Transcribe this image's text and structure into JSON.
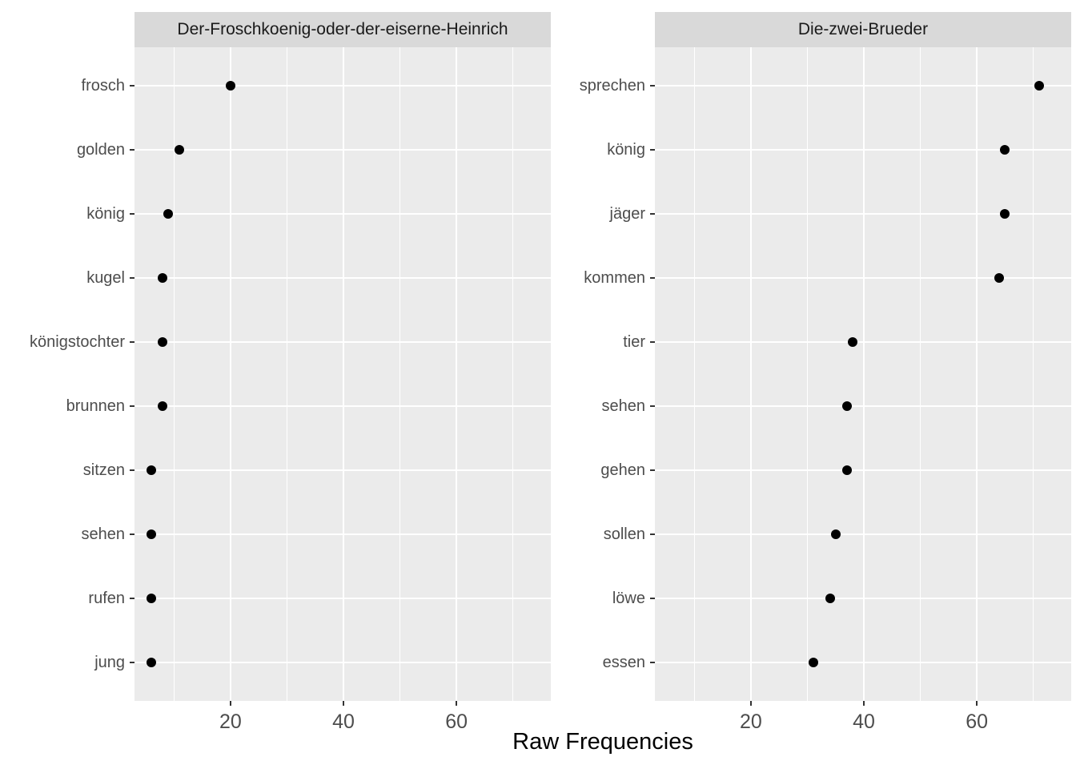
{
  "figure": {
    "xlabel": "Raw Frequencies",
    "x_ticks": [
      20,
      40,
      60
    ],
    "x_minor_ticks": [
      10,
      30,
      50,
      70
    ],
    "x_domain": [
      3,
      76.7
    ],
    "grid": "on",
    "legend": "none",
    "colors": {
      "panel_bg": "#ebebeb",
      "strip_bg": "#d9d9d9",
      "gridline": "#ffffff",
      "dot": "#000000",
      "axis_text": "#4d4d4d",
      "strip_text": "#1a1a1a",
      "tick_mark": "#333333",
      "axis_title": "#000000"
    }
  },
  "chart_data": [
    {
      "type": "scatter",
      "subtype": "horizontal-dot-plot",
      "facet_label": "Der-Froschkoenig-oder-der-eiserne-Heinrich",
      "xlabel": "Raw Frequencies",
      "xlim": [
        3,
        76.7
      ],
      "x_ticks": [
        20,
        40,
        60
      ],
      "categories": [
        "frosch",
        "golden",
        "könig",
        "kugel",
        "königstochter",
        "brunnen",
        "sitzen",
        "sehen",
        "rufen",
        "jung"
      ],
      "values": [
        20,
        11,
        9,
        8,
        8,
        8,
        6,
        6,
        6,
        6
      ]
    },
    {
      "type": "scatter",
      "subtype": "horizontal-dot-plot",
      "facet_label": "Die-zwei-Brueder",
      "xlabel": "Raw Frequencies",
      "xlim": [
        3,
        76.7
      ],
      "x_ticks": [
        20,
        40,
        60
      ],
      "categories": [
        "sprechen",
        "könig",
        "jäger",
        "kommen",
        "tier",
        "sehen",
        "gehen",
        "sollen",
        "löwe",
        "essen"
      ],
      "values": [
        71,
        65,
        65,
        64,
        38,
        37,
        37,
        35,
        34,
        31
      ]
    }
  ]
}
